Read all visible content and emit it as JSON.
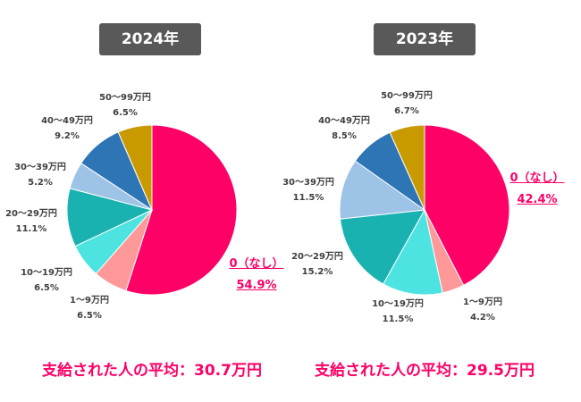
{
  "chart_data": [
    {
      "type": "pie",
      "title": "2024年",
      "categories": [
        "0（なし）",
        "1～9万円",
        "10～19万円",
        "20～29万円",
        "30～39万円",
        "40～49万円",
        "50～99万円"
      ],
      "values": [
        54.9,
        6.5,
        6.5,
        11.1,
        5.2,
        9.2,
        6.5
      ],
      "labels": [
        "54.9%",
        "6.5%",
        "6.5%",
        "11.1%",
        "5.2%",
        "9.2%",
        "6.5%"
      ],
      "footer": "支給された人の平均：30.7万円"
    },
    {
      "type": "pie",
      "title": "2023年",
      "categories": [
        "0（なし）",
        "1～9万円",
        "10～19万円",
        "20～29万円",
        "30～39万円",
        "40～49万円",
        "50～99万円"
      ],
      "values": [
        42.4,
        4.2,
        11.5,
        15.2,
        11.5,
        8.5,
        6.7
      ],
      "labels": [
        "42.4%",
        "4.2%",
        "11.5%",
        "15.2%",
        "11.5%",
        "8.5%",
        "6.7%"
      ],
      "footer": "支給された人の平均：29.5万円"
    }
  ],
  "colors": [
    "#FF0066",
    "#FF9999",
    "#4DE3E0",
    "#1AB2B0",
    "#9DC3E6",
    "#2E75B6",
    "#C99A00"
  ]
}
